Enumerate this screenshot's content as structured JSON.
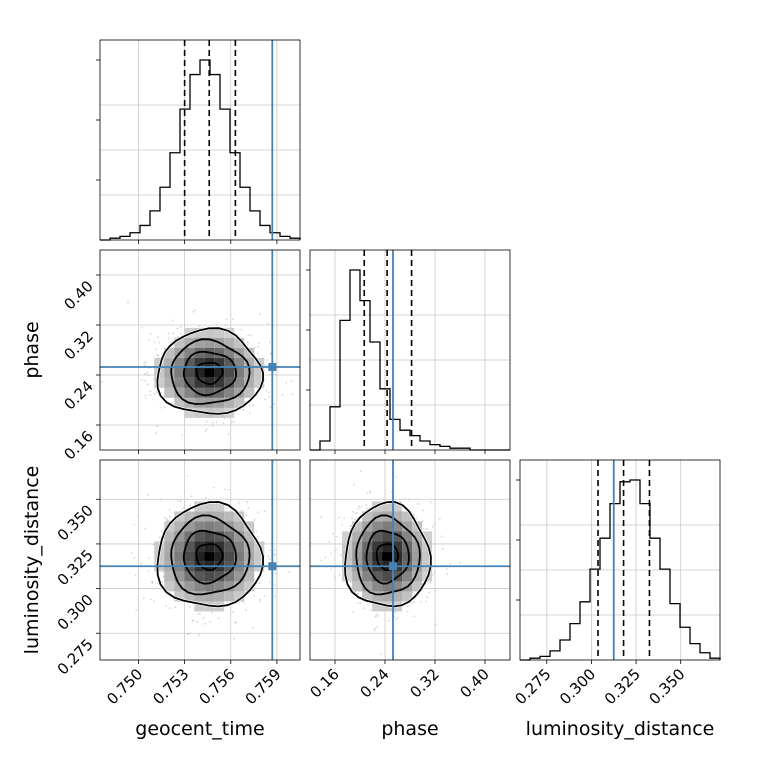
{
  "chart_data": {
    "type": "corner",
    "parameters": [
      "geocent_time",
      "phase",
      "luminosity_distance"
    ],
    "ranges": {
      "geocent_time": [
        0.7475,
        0.7605
      ],
      "phase": [
        0.12,
        0.44
      ],
      "luminosity_distance": [
        0.26,
        0.372
      ]
    },
    "ticks": {
      "geocent_time": [
        "0.750",
        "0.753",
        "0.756",
        "0.759"
      ],
      "phase": [
        "0.16",
        "0.24",
        "0.32",
        "0.40"
      ],
      "luminosity_distance": [
        "0.275",
        "0.300",
        "0.325",
        "0.350"
      ]
    },
    "truths": {
      "geocent_time": 0.7587,
      "phase": 0.2528,
      "luminosity_distance": 0.3125
    },
    "quantiles": {
      "geocent_time": [
        0.753,
        0.7546,
        0.7563
      ],
      "phase": [
        0.2068,
        0.2434,
        0.2825
      ],
      "luminosity_distance": [
        0.3037,
        0.318,
        0.3325
      ]
    },
    "histograms": {
      "geocent_time": [
        0,
        1,
        2,
        4,
        8,
        16,
        29,
        48,
        72,
        91,
        99,
        91,
        72,
        48,
        29,
        16,
        8,
        4,
        2,
        1
      ],
      "phase": [
        0,
        5,
        24,
        72,
        100,
        83,
        60,
        34,
        17,
        11,
        8,
        5,
        3,
        2,
        1,
        1,
        0,
        0,
        0,
        0
      ],
      "luminosity_distance": [
        0,
        1,
        2,
        5,
        11,
        20,
        32,
        50,
        67,
        86,
        98,
        99,
        86,
        67,
        50,
        31,
        18,
        9,
        4,
        1
      ]
    },
    "contour_centers": {
      "phase_vs_geocent_time": [
        0.7546,
        0.2434
      ],
      "luminosity_distance_vs_geocent_time": [
        0.7546,
        0.318
      ],
      "luminosity_distance_vs_phase": [
        0.2434,
        0.318
      ]
    },
    "grid": true,
    "colors": {
      "truth": "#4682b4",
      "line": "#000000",
      "grid": "#c8c8c8",
      "sample": "#b4b4b4"
    }
  }
}
